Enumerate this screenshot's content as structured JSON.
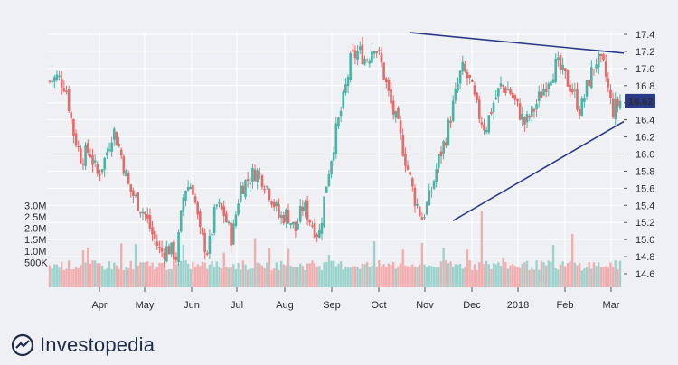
{
  "brand": {
    "name": "Investopedia"
  },
  "colors": {
    "up": "#4bb3a6",
    "down": "#e56a6a",
    "vol_up": "#9dd3cd",
    "vol_down": "#f1aeb0",
    "trendline": "#2a3a86",
    "price_label_bg": "#2a3a86",
    "background": "#eef0f3",
    "grid": "#ffffff"
  },
  "chart_data": {
    "type": "candlestick",
    "title": "",
    "xlabel": "",
    "ylabel": "",
    "x_ticks": [
      "Apr",
      "May",
      "Jun",
      "Jul",
      "Aug",
      "Sep",
      "Oct",
      "Nov",
      "Dec",
      "2018",
      "Feb",
      "Mar"
    ],
    "y_ticks": [
      "17.4",
      "17.2",
      "17.0",
      "16.8",
      "16.6",
      "16.4",
      "16.2",
      "16.0",
      "15.8",
      "15.6",
      "15.4",
      "15.2",
      "15.0",
      "14.8",
      "14.6"
    ],
    "ylim": [
      14.5,
      17.5
    ],
    "current_price": "16.62",
    "volume_ticks": [
      "3.0M",
      "2.5M",
      "2.0M",
      "1.5M",
      "1.0M",
      "500K"
    ],
    "volume_ylim": [
      0,
      3.4
    ],
    "price_path": [
      16.85,
      16.9,
      16.8,
      16.25,
      15.95,
      16.05,
      15.75,
      15.95,
      16.3,
      16.0,
      15.6,
      15.45,
      15.3,
      15.05,
      14.85,
      14.9,
      14.8,
      15.6,
      15.65,
      15.05,
      14.85,
      15.4,
      15.3,
      15.0,
      15.6,
      15.7,
      15.8,
      15.7,
      15.5,
      15.25,
      15.3,
      15.1,
      15.4,
      15.2,
      15.05,
      15.7,
      16.2,
      16.6,
      17.1,
      17.2,
      17.1,
      17.3,
      17.0,
      16.6,
      16.3,
      15.9,
      15.5,
      15.25,
      15.5,
      15.9,
      16.2,
      16.6,
      17.0,
      16.85,
      16.5,
      16.3,
      16.6,
      16.8,
      16.75,
      16.55,
      16.35,
      16.5,
      16.7,
      16.9,
      17.05,
      16.9,
      16.75,
      16.5,
      16.85,
      17.1,
      17.0,
      16.5,
      16.62
    ],
    "trendlines": [
      {
        "from": [
          "Oct",
          17.42
        ],
        "to": [
          "Mar",
          17.18
        ]
      },
      {
        "from": [
          "Nov",
          15.22
        ],
        "to": [
          "Mar",
          16.38
        ]
      }
    ]
  }
}
